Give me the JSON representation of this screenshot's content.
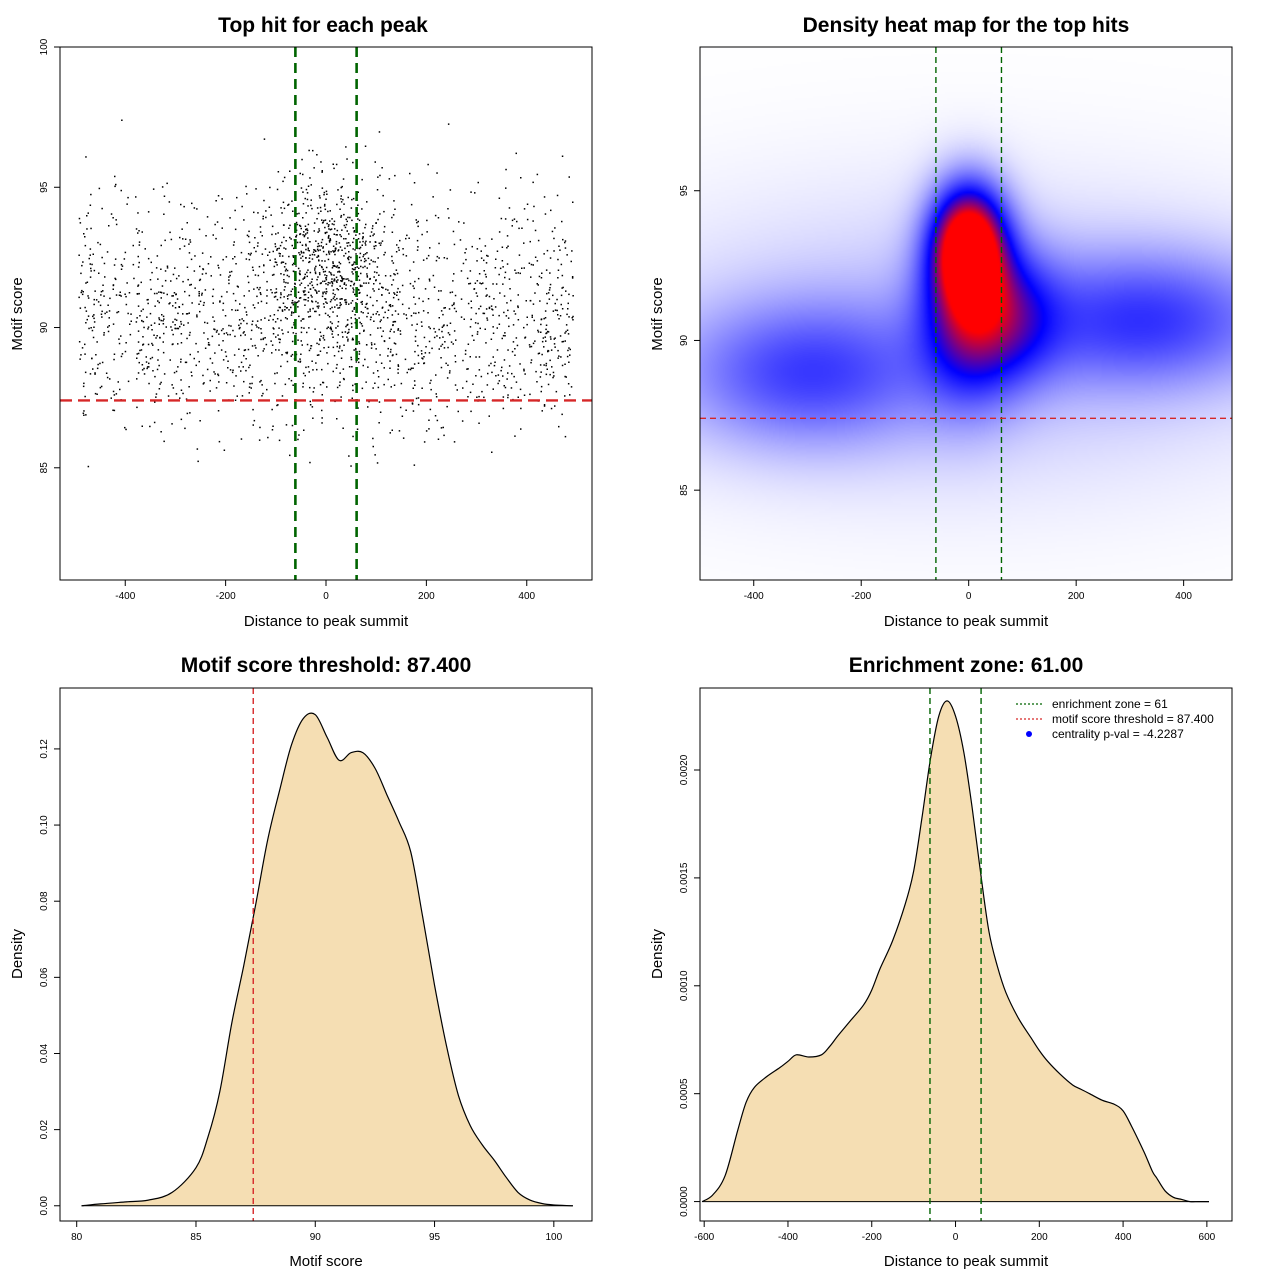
{
  "colors": {
    "green": "#006400",
    "red": "#d62728",
    "fill": "#f5deb3",
    "heat_low": "#ffffff",
    "heat_mid": "#0000ff",
    "heat_high": "#ff0000"
  },
  "chart_data": [
    {
      "id": "top-hits-scatter",
      "type": "scatter",
      "title": "Top hit for each peak",
      "xlabel": "Distance to peak summit",
      "ylabel": "Motif score",
      "xlim": [
        -530,
        530
      ],
      "ylim": [
        81,
        100
      ],
      "xticks": [
        -400,
        -200,
        0,
        200,
        400
      ],
      "yticks": [
        85,
        90,
        95,
        100
      ],
      "vlines": [
        -61,
        61
      ],
      "hline": 87.4,
      "point_groups": [
        {
          "x_center": 0,
          "x_spread": 70,
          "y_center": 92.3,
          "y_spread": 2.0,
          "count": 650
        },
        {
          "x_center": 0,
          "x_spread": 500,
          "y_center": 90.0,
          "y_spread": 2.6,
          "count": 1500
        },
        {
          "x_center": 0,
          "x_spread": 500,
          "y_center": 93.5,
          "y_spread": 2.2,
          "count": 250
        }
      ]
    },
    {
      "id": "density-heatmap",
      "type": "heatmap",
      "title": "Density heat map for the top hits",
      "xlabel": "Distance to peak summit",
      "ylabel": "Motif score",
      "xlim": [
        -500,
        490
      ],
      "ylim": [
        82.0,
        99.8
      ],
      "xticks": [
        -400,
        -200,
        0,
        200,
        400
      ],
      "yticks": [
        85,
        90,
        95
      ],
      "vlines": [
        -61,
        61
      ],
      "hline": 87.4,
      "blobs": [
        {
          "x": 0,
          "y": 93.2,
          "sx": 45,
          "sy": 1.3,
          "w": 1.0
        },
        {
          "x": 0,
          "y": 91.0,
          "sx": 60,
          "sy": 1.9,
          "w": 0.55
        },
        {
          "x": 85,
          "y": 90.8,
          "sx": 60,
          "sy": 1.5,
          "w": 0.3
        },
        {
          "x": -300,
          "y": 88.9,
          "sx": 160,
          "sy": 1.6,
          "w": 0.3
        },
        {
          "x": 330,
          "y": 90.7,
          "sx": 170,
          "sy": 1.5,
          "w": 0.32
        },
        {
          "x": 0,
          "y": 90.0,
          "sx": 420,
          "sy": 3.2,
          "w": 0.1
        }
      ]
    },
    {
      "id": "motif-score-density",
      "type": "area",
      "title": "Motif score threshold: 87.400",
      "xlabel": "Motif score",
      "ylabel": "Density",
      "xlim": [
        79.3,
        101.6
      ],
      "ylim": [
        -0.004,
        0.136
      ],
      "xticks": [
        80,
        85,
        90,
        95,
        100
      ],
      "yticks": [
        0.0,
        0.02,
        0.04,
        0.06,
        0.08,
        0.1,
        0.12
      ],
      "vline": 87.4,
      "x": [
        80.2,
        81,
        82,
        83,
        84,
        85,
        85.5,
        86,
        86.5,
        87,
        87.5,
        88,
        88.5,
        89,
        89.5,
        90,
        90.5,
        91,
        91.5,
        92,
        92.5,
        93,
        93.5,
        94,
        94.5,
        95,
        95.5,
        96,
        96.5,
        97,
        97.5,
        98,
        98.5,
        99,
        99.5,
        100,
        100.8
      ],
      "y": [
        0.0,
        0.0005,
        0.001,
        0.0015,
        0.0035,
        0.01,
        0.018,
        0.03,
        0.048,
        0.063,
        0.079,
        0.096,
        0.109,
        0.121,
        0.128,
        0.129,
        0.123,
        0.117,
        0.119,
        0.119,
        0.115,
        0.108,
        0.101,
        0.093,
        0.076,
        0.058,
        0.042,
        0.029,
        0.021,
        0.016,
        0.012,
        0.0075,
        0.0035,
        0.0015,
        0.0006,
        0.0002,
        0.0
      ]
    },
    {
      "id": "enrichment-density",
      "type": "area",
      "title": "Enrichment zone: 61.00",
      "xlabel": "Distance to peak summit",
      "ylabel": "Density",
      "xlim": [
        -610,
        660
      ],
      "ylim": [
        -9e-05,
        0.00238
      ],
      "xticks": [
        -600,
        -400,
        -200,
        0,
        200,
        400,
        600
      ],
      "ytick_values": [
        0.0,
        0.0005,
        0.001,
        0.0015,
        0.002
      ],
      "ytick_labels": [
        "0.0000",
        "0.0005",
        "0.0010",
        "0.0015",
        "0.0020"
      ],
      "vlines": [
        -61,
        61
      ],
      "x": [
        -605,
        -580,
        -550,
        -520,
        -500,
        -480,
        -450,
        -420,
        -400,
        -380,
        -350,
        -320,
        -300,
        -280,
        -250,
        -220,
        -200,
        -180,
        -150,
        -120,
        -100,
        -80,
        -60,
        -40,
        -20,
        0,
        20,
        40,
        60,
        80,
        100,
        120,
        150,
        180,
        200,
        220,
        250,
        280,
        300,
        320,
        350,
        380,
        400,
        420,
        450,
        470,
        480,
        500,
        520,
        540,
        560,
        580,
        605
      ],
      "y": [
        0.0,
        3e-05,
        0.00012,
        0.00033,
        0.00046,
        0.00053,
        0.00058,
        0.00062,
        0.00065,
        0.00068,
        0.00067,
        0.00068,
        0.00072,
        0.00077,
        0.00084,
        0.00091,
        0.00098,
        0.00108,
        0.00121,
        0.00138,
        0.00153,
        0.00178,
        0.00205,
        0.00225,
        0.00232,
        0.00225,
        0.00208,
        0.00182,
        0.00152,
        0.00125,
        0.00109,
        0.00097,
        0.00085,
        0.00076,
        0.0007,
        0.00065,
        0.00059,
        0.00054,
        0.00052,
        0.0005,
        0.00047,
        0.00045,
        0.00042,
        0.00035,
        0.00023,
        0.00014,
        0.00011,
        5e-05,
        2e-05,
        1e-05,
        0.0,
        0.0,
        0.0
      ]
    }
  ],
  "legend": {
    "enrichment": "enrichment zone = 61",
    "threshold": "motif score threshold = 87.400",
    "pval": "centrality p-val = -4.2287"
  }
}
